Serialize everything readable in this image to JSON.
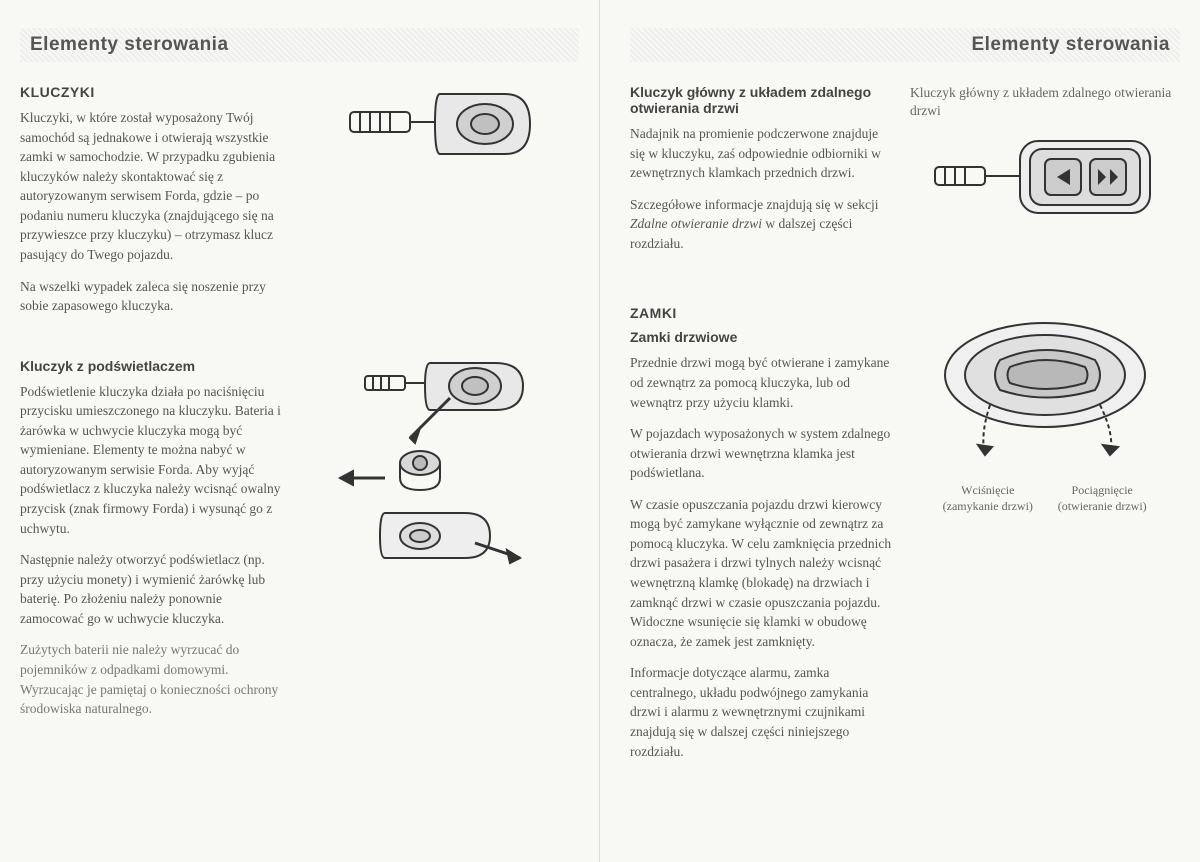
{
  "left": {
    "header": "Elementy sterowania",
    "sec1": {
      "title": "KLUCZYKI",
      "p1": "Kluczyki, w które został wyposażony Twój samochód są jednakowe i otwierają wszystkie zamki w samochodzie. W przypadku zgubienia kluczyków należy skontaktować się z autoryzowanym serwisem Forda, gdzie – po podaniu numeru kluczyka (znajdującego się na przywieszce przy kluczyku) – otrzymasz klucz pasujący do Twego pojazdu.",
      "p2": "Na wszelki wypadek zaleca się noszenie przy sobie zapasowego kluczyka."
    },
    "sec2": {
      "title": "Kluczyk z podświetlaczem",
      "p1": "Podświetlenie kluczyka działa po naciśnięciu przycisku umieszczonego na kluczyku. Bateria i żarówka w uchwycie kluczyka mogą być wymieniane. Elementy te można nabyć w autoryzowanym serwisie Forda. Aby wyjąć podświetlacz z kluczyka należy wcisnąć owalny przycisk (znak firmowy Forda) i wysunąć go z uchwytu.",
      "p2": "Następnie należy otworzyć podświetlacz (np. przy użyciu monety) i wymienić żarówkę lub baterię. Po złożeniu należy ponownie zamocować go w uchwycie kluczyka.",
      "note": "Zużytych baterii nie należy wyrzucać do pojemników z odpadkami domowymi. Wyrzucając je pamiętaj o konieczności ochrony środowiska naturalnego."
    }
  },
  "right": {
    "header": "Elementy sterowania",
    "sec1": {
      "title": "Kluczyk główny z układem zdalnego otwierania drzwi",
      "p1": "Nadajnik na promienie podczerwone znajduje się w kluczyku, zaś odpowiednie odbiorniki w zewnętrznych klamkach przednich drzwi.",
      "p2": "Szczegółowe informacje znajdują się w sekcji <em>Zdalne otwieranie drzwi</em> w dalszej części rozdziału.",
      "caption": "Kluczyk główny z układem zdalnego otwierania drzwi"
    },
    "sec2": {
      "title_caps": "ZAMKI",
      "title": "Zamki drzwiowe",
      "p1": "Przednie drzwi mogą być otwierane i zamykane od zewnątrz za pomocą kluczyka, lub od wewnątrz przy użyciu klamki.",
      "p2": "W pojazdach wyposażonych w system zdalnego otwierania drzwi wewnętrzna klamka jest podświetlana.",
      "p3": "W czasie opuszczania pojazdu drzwi kierowcy mogą być zamykane wyłącznie od zewnątrz za pomocą kluczyka. W celu zamknięcia przednich drzwi pasażera i drzwi tylnych należy wcisnąć wewnętrzną klamkę (blokadę) na drzwiach i zamknąć drzwi w czasie opuszczania pojazdu. Widoczne wsunięcie się klamki w obudowę oznacza, że zamek jest zamknięty.",
      "p4": "Informacje dotyczące alarmu, zamka centralnego, układu podwójnego zamykania drzwi i alarmu z wewnętrznymi czujnikami znajdują się w dalszej części niniejszego rozdziału.",
      "label_left": "Wciśnięcie (zamykanie drzwi)",
      "label_right": "Pociągnięcie (otwieranie drzwi)"
    }
  },
  "colors": {
    "stroke": "#333333",
    "fill": "#dcdcdc",
    "dotfill": "#cccccc"
  }
}
